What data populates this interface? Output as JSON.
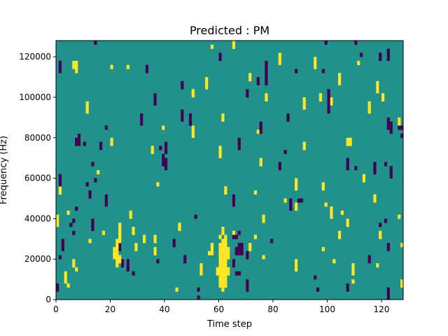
{
  "chart_data": {
    "type": "heatmap",
    "title": "Predicted : PM",
    "xlabel": "Time step",
    "ylabel": "Frequency (Hz)",
    "xlim": [
      0,
      128
    ],
    "ylim": [
      0,
      128000
    ],
    "xticks": [
      0,
      20,
      40,
      60,
      80,
      100,
      120
    ],
    "yticks": [
      0,
      20000,
      40000,
      60000,
      80000,
      100000,
      120000
    ],
    "grid": false,
    "colors": {
      "background": "#21918c",
      "high": "#fde725",
      "low": "#440154"
    },
    "levels": {
      "background": 0,
      "high": 1,
      "low": -1
    },
    "seed": 7,
    "cells_high": [
      [
        60,
        3
      ],
      [
        60,
        4
      ],
      [
        60,
        5
      ],
      [
        60,
        6
      ],
      [
        60,
        7
      ],
      [
        60,
        8
      ],
      [
        60,
        9
      ],
      [
        60,
        10
      ],
      [
        60,
        11
      ],
      [
        60,
        12
      ],
      [
        60,
        13
      ],
      [
        61,
        2
      ],
      [
        61,
        3
      ],
      [
        61,
        4
      ],
      [
        61,
        5
      ],
      [
        61,
        6
      ],
      [
        61,
        7
      ],
      [
        61,
        8
      ],
      [
        61,
        9
      ],
      [
        61,
        10
      ],
      [
        61,
        11
      ],
      [
        61,
        12
      ],
      [
        61,
        13
      ],
      [
        61,
        14
      ],
      [
        62,
        3
      ],
      [
        62,
        4
      ],
      [
        62,
        5
      ],
      [
        62,
        6
      ],
      [
        62,
        7
      ],
      [
        62,
        8
      ],
      [
        62,
        9
      ],
      [
        62,
        10
      ],
      [
        62,
        11
      ],
      [
        62,
        12
      ],
      [
        62,
        13
      ],
      [
        62,
        14
      ],
      [
        62,
        15
      ],
      [
        63,
        6
      ],
      [
        63,
        7
      ],
      [
        63,
        10
      ],
      [
        63,
        11
      ],
      [
        63,
        12
      ],
      [
        59,
        6
      ],
      [
        59,
        7
      ],
      [
        60,
        15
      ],
      [
        61,
        16
      ],
      [
        61,
        17
      ],
      [
        62,
        26
      ],
      [
        62,
        27
      ],
      [
        61,
        44
      ],
      [
        61,
        45
      ],
      [
        21,
        10
      ],
      [
        21,
        11
      ],
      [
        21,
        12
      ],
      [
        22,
        8
      ],
      [
        22,
        9
      ],
      [
        22,
        10
      ],
      [
        22,
        11
      ],
      [
        22,
        12
      ],
      [
        22,
        13
      ],
      [
        22,
        14
      ],
      [
        23,
        9
      ],
      [
        23,
        10
      ],
      [
        23,
        14
      ],
      [
        23,
        15
      ],
      [
        23,
        16
      ],
      [
        23,
        17
      ],
      [
        23,
        18
      ],
      [
        44,
        2
      ],
      [
        88,
        22
      ],
      [
        88,
        23
      ],
      [
        109,
        4
      ],
      [
        118,
        8
      ]
    ],
    "cells_low": [
      [
        66,
        11
      ],
      [
        66,
        12
      ],
      [
        67,
        11
      ],
      [
        67,
        12
      ],
      [
        67,
        13
      ],
      [
        68,
        11
      ],
      [
        68,
        12
      ],
      [
        68,
        13
      ],
      [
        65,
        15
      ],
      [
        66,
        15
      ],
      [
        67,
        16
      ],
      [
        66,
        6
      ],
      [
        67,
        6
      ],
      [
        6,
        16
      ],
      [
        5,
        18
      ],
      [
        6,
        19
      ],
      [
        7,
        22
      ],
      [
        126,
        42
      ],
      [
        127,
        42
      ],
      [
        89,
        24
      ],
      [
        90,
        24
      ]
    ],
    "scatter_high_count": 80,
    "scatter_low_count": 80
  }
}
